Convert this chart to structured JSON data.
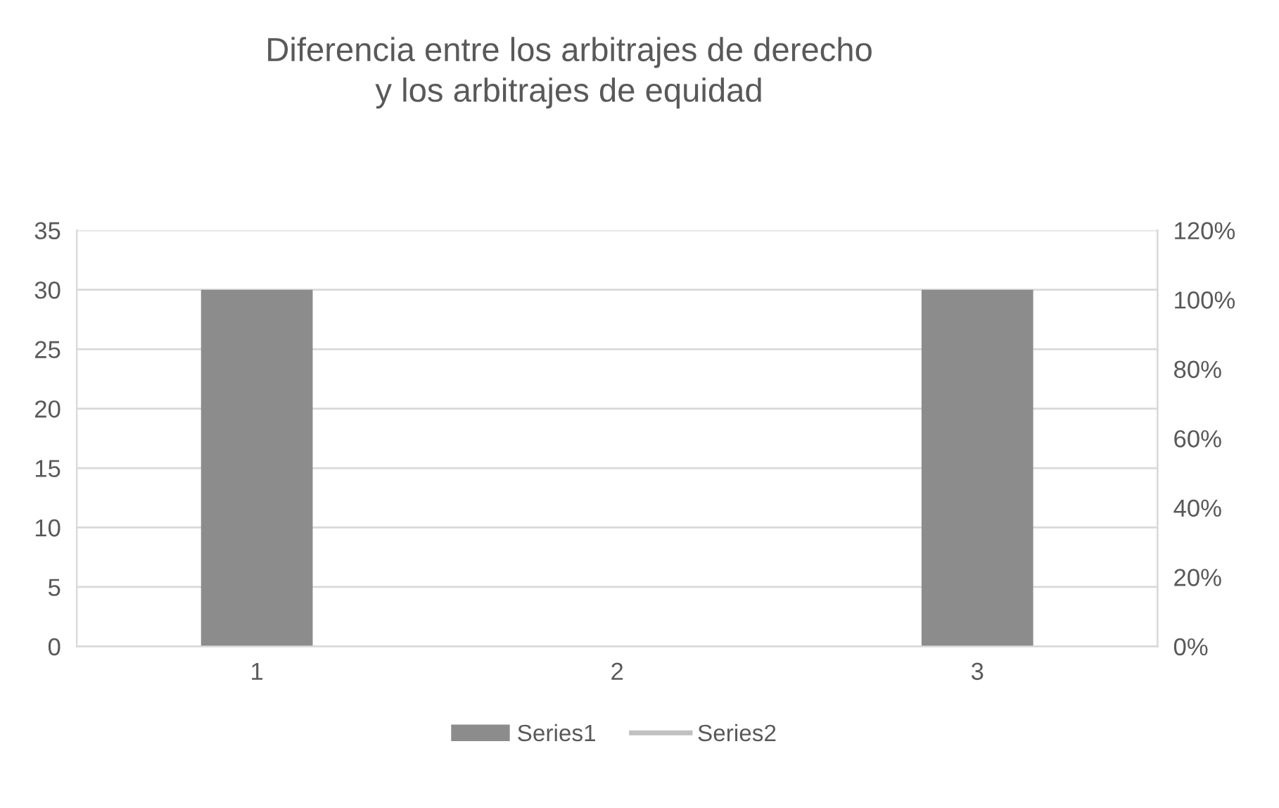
{
  "chart_data": {
    "type": "bar",
    "title": "Diferencia entre los arbitrajes de derecho\ny los arbitrajes de equidad",
    "categories": [
      "1",
      "2",
      "3"
    ],
    "series": [
      {
        "name": "Series1",
        "color": "#8c8c8c",
        "values": [
          30,
          0,
          30
        ]
      },
      {
        "name": "Series2",
        "color": "#c0c0c0",
        "type": "line",
        "values": [
          null,
          null,
          null
        ]
      }
    ],
    "ylim": [
      0,
      35
    ],
    "yticks": [
      0,
      5,
      10,
      15,
      20,
      25,
      30,
      35
    ],
    "y2lim": [
      0,
      1.2
    ],
    "y2ticks": [
      {
        "value": 0,
        "label": "0%"
      },
      {
        "value": 0.2,
        "label": "20%"
      },
      {
        "value": 0.4,
        "label": "40%"
      },
      {
        "value": 0.6,
        "label": "60%"
      },
      {
        "value": 0.8,
        "label": "80%"
      },
      {
        "value": 1.0,
        "label": "100%"
      },
      {
        "value": 1.2,
        "label": "120%"
      }
    ],
    "grid": "y",
    "legend": "bottom"
  }
}
